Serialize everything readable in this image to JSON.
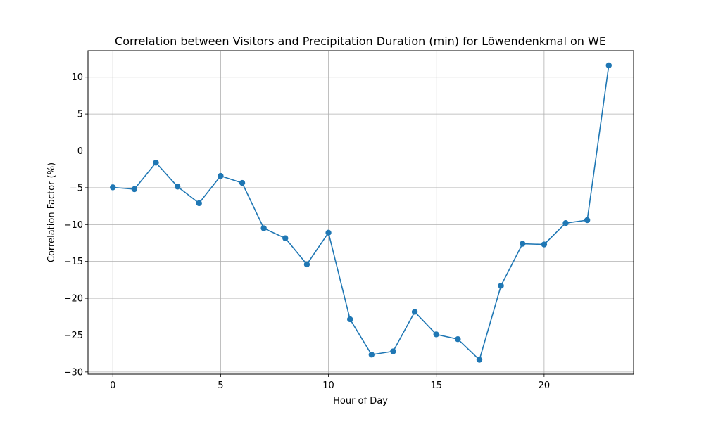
{
  "chart_data": {
    "type": "line",
    "title": "Correlation between Visitors and Precipitation Duration (min) for Löwendenkmal on WE",
    "xlabel": "Hour of Day",
    "ylabel": "Correlation Factor (%)",
    "xlim": [
      -1.15,
      24.15
    ],
    "ylim": [
      -30.3,
      13.6
    ],
    "x_ticks": [
      0,
      5,
      10,
      15,
      20
    ],
    "y_ticks": [
      10,
      5,
      0,
      -5,
      -10,
      -15,
      -20,
      -25,
      -30
    ],
    "x_tick_labels": [
      "0",
      "5",
      "10",
      "15",
      "20"
    ],
    "y_tick_labels": [
      "10",
      "5",
      "0",
      "−5",
      "−10",
      "−15",
      "−20",
      "−25",
      "−30"
    ],
    "grid": true,
    "series": [
      {
        "color": "#1f77b4",
        "marker": "circle",
        "x": [
          0,
          1,
          2,
          3,
          4,
          5,
          6,
          7,
          8,
          9,
          10,
          11,
          12,
          13,
          14,
          15,
          16,
          17,
          18,
          19,
          20,
          21,
          22,
          23
        ],
        "y": [
          -4.95,
          -5.2,
          -1.6,
          -4.85,
          -7.1,
          -3.4,
          -4.35,
          -10.5,
          -11.85,
          -15.4,
          -11.1,
          -22.85,
          -27.65,
          -27.2,
          -21.85,
          -24.9,
          -25.55,
          -28.35,
          -18.3,
          -12.6,
          -12.7,
          -9.8,
          -9.4,
          11.6
        ]
      }
    ]
  }
}
